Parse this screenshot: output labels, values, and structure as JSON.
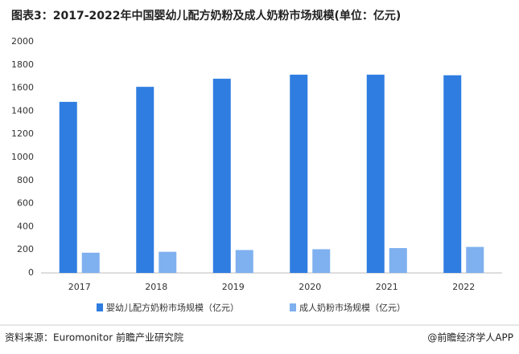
{
  "chart_data": {
    "type": "bar",
    "title": "图表3：2017-2022年中国婴幼儿配方奶粉及成人奶粉市场规模(单位：亿元)",
    "categories": [
      "2017",
      "2018",
      "2019",
      "2020",
      "2021",
      "2022"
    ],
    "series": [
      {
        "name": "婴幼儿配方奶粉市场规模（亿元）",
        "color": "#2f7de1",
        "values": [
          1480,
          1610,
          1680,
          1715,
          1715,
          1710
        ]
      },
      {
        "name": "成人奶粉市场规模（亿元）",
        "color": "#7fb0ef",
        "values": [
          175,
          183,
          198,
          205,
          215,
          225
        ]
      }
    ],
    "ylim": [
      0,
      2000
    ],
    "yticks": [
      0,
      200,
      400,
      600,
      800,
      1000,
      1200,
      1400,
      1600,
      1800,
      2000
    ],
    "grid": false,
    "source": "资料来源：Euromonitor 前瞻产业研究院",
    "credit": "@前瞻经济学人APP"
  }
}
